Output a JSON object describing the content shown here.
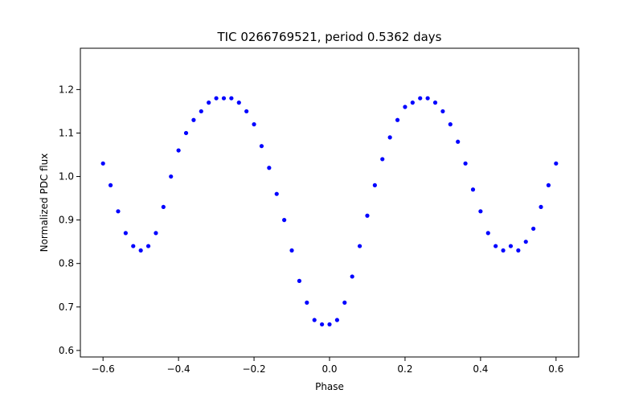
{
  "chart_data": {
    "type": "scatter",
    "title": "TIC 0266769521, period 0.5362 days",
    "xlabel": "Phase",
    "ylabel": "Normalized PDC flux",
    "xlim": [
      -0.66,
      0.66
    ],
    "ylim": [
      0.585,
      1.295
    ],
    "xticks": [
      -0.6,
      -0.4,
      -0.2,
      0.0,
      0.2,
      0.4,
      0.6
    ],
    "xtick_labels": [
      "−0.6",
      "−0.4",
      "−0.2",
      "0.0",
      "0.2",
      "0.4",
      "0.6"
    ],
    "yticks": [
      0.6,
      0.7,
      0.8,
      0.9,
      1.0,
      1.1,
      1.2
    ],
    "ytick_labels": [
      "0.6",
      "0.7",
      "0.8",
      "0.9",
      "1.0",
      "1.1",
      "1.2"
    ],
    "grid": false,
    "marker_color": "#0000ff",
    "series": [
      {
        "x": [
          -0.6,
          -0.58,
          -0.56,
          -0.54,
          -0.52,
          -0.5,
          -0.48,
          -0.46,
          -0.44,
          -0.42,
          -0.4,
          -0.38,
          -0.36,
          -0.34,
          -0.32,
          -0.3,
          -0.28,
          -0.26,
          -0.24,
          -0.22,
          -0.2,
          -0.18,
          -0.16,
          -0.14,
          -0.12,
          -0.1,
          -0.08,
          -0.06,
          -0.04,
          -0.02,
          0.0,
          0.02,
          0.04,
          0.06,
          0.08,
          0.1,
          0.12,
          0.14,
          0.16,
          0.18,
          0.2,
          0.22,
          0.24,
          0.26,
          0.28,
          0.3,
          0.32,
          0.34,
          0.36,
          0.38,
          0.4,
          0.42,
          0.44,
          0.46,
          0.48,
          0.5,
          0.52,
          0.54,
          0.56,
          0.58,
          0.6
        ],
        "y": [
          1.03,
          0.98,
          0.92,
          0.87,
          0.84,
          0.83,
          0.84,
          0.87,
          0.93,
          1.0,
          1.06,
          1.1,
          1.13,
          1.15,
          1.17,
          1.18,
          1.18,
          1.18,
          1.17,
          1.15,
          1.12,
          1.07,
          1.02,
          0.96,
          0.9,
          0.83,
          0.76,
          0.71,
          0.67,
          0.66,
          0.66,
          0.67,
          0.71,
          0.77,
          0.84,
          0.91,
          0.98,
          1.04,
          1.09,
          1.13,
          1.16,
          1.17,
          1.18,
          1.18,
          1.17,
          1.15,
          1.12,
          1.08,
          1.03,
          0.97,
          0.92,
          0.87,
          0.84,
          0.83,
          0.84,
          0.83,
          0.85,
          0.88,
          0.93,
          0.98,
          1.03
        ]
      }
    ],
    "annotations": []
  }
}
